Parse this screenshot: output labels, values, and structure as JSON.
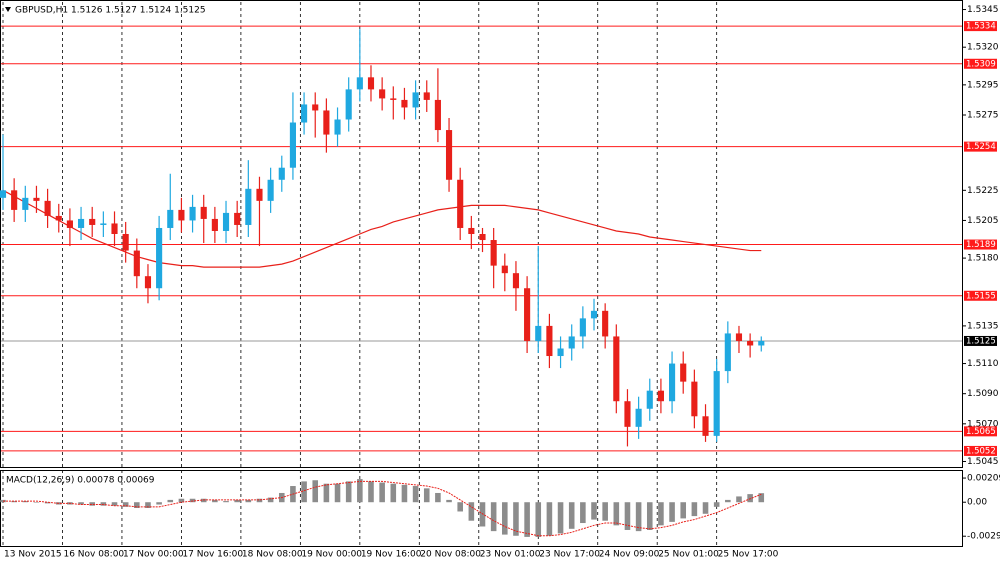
{
  "chart_data": [
    {
      "type": "candlestick",
      "title": "GBPUSD,H1  1.5126 1.5127 1.5124 1.5125",
      "x": [
        0,
        3,
        6,
        9,
        12,
        15,
        18,
        21,
        24,
        27,
        30,
        33,
        36,
        39,
        42,
        45,
        48,
        51,
        54,
        57,
        60,
        63,
        66,
        69,
        72,
        75,
        78,
        81,
        84,
        87,
        90,
        93,
        96,
        99,
        102,
        105,
        108,
        111,
        114,
        117,
        120,
        123,
        126,
        129,
        132,
        135,
        138,
        141,
        144,
        147,
        150,
        153,
        156,
        159,
        162,
        165,
        168,
        171,
        174,
        177,
        180,
        183,
        186,
        189,
        192,
        195,
        198,
        201,
        204
      ],
      "open": [
        1.522,
        1.5225,
        1.5212,
        1.522,
        1.5218,
        1.5208,
        1.5205,
        1.52,
        1.5206,
        1.5202,
        1.5203,
        1.5196,
        1.5185,
        1.5168,
        1.516,
        1.52,
        1.5212,
        1.5205,
        1.5214,
        1.5206,
        1.5198,
        1.521,
        1.5202,
        1.5226,
        1.5218,
        1.5232,
        1.524,
        1.527,
        1.5282,
        1.5278,
        1.5262,
        1.5272,
        1.5292,
        1.53,
        1.5292,
        1.5286,
        1.5285,
        1.528,
        1.529,
        1.5285,
        1.5265,
        1.5232,
        1.52,
        1.5196,
        1.5192,
        1.5175,
        1.517,
        1.516,
        1.5125,
        1.5135,
        1.5115,
        1.512,
        1.5128,
        1.514,
        1.5145,
        1.5128,
        1.5085,
        1.5068,
        1.508,
        1.5092,
        1.5085,
        1.511,
        1.5098,
        1.5075,
        1.5062,
        1.5105,
        1.513,
        1.5125,
        1.5122
      ],
      "high": [
        1.5262,
        1.5233,
        1.5228,
        1.5228,
        1.5226,
        1.5216,
        1.5213,
        1.5214,
        1.5214,
        1.5211,
        1.5211,
        1.5204,
        1.5193,
        1.5176,
        1.5208,
        1.5236,
        1.522,
        1.5222,
        1.5222,
        1.5214,
        1.5218,
        1.5218,
        1.5245,
        1.5234,
        1.524,
        1.5248,
        1.529,
        1.529,
        1.529,
        1.5286,
        1.528,
        1.53,
        1.5332,
        1.5308,
        1.53,
        1.5294,
        1.5293,
        1.5298,
        1.5298,
        1.5306,
        1.5273,
        1.524,
        1.5208,
        1.52,
        1.52,
        1.5183,
        1.5178,
        1.5168,
        1.5188,
        1.5143,
        1.5128,
        1.5136,
        1.5148,
        1.5153,
        1.515,
        1.5136,
        1.5093,
        1.5088,
        1.51,
        1.51,
        1.5118,
        1.5118,
        1.5106,
        1.5083,
        1.5113,
        1.5138,
        1.5135,
        1.513,
        1.5128
      ],
      "low": [
        1.5212,
        1.5204,
        1.5204,
        1.521,
        1.52,
        1.5197,
        1.5188,
        1.5192,
        1.5194,
        1.5194,
        1.5188,
        1.5177,
        1.516,
        1.515,
        1.5152,
        1.5192,
        1.5197,
        1.5197,
        1.519,
        1.519,
        1.519,
        1.5194,
        1.5194,
        1.5188,
        1.521,
        1.5224,
        1.5232,
        1.5262,
        1.526,
        1.525,
        1.5254,
        1.5264,
        1.5284,
        1.5284,
        1.5278,
        1.5272,
        1.5272,
        1.5272,
        1.5277,
        1.5257,
        1.5224,
        1.5192,
        1.5186,
        1.5184,
        1.516,
        1.5158,
        1.5145,
        1.5117,
        1.5117,
        1.5107,
        1.5107,
        1.5112,
        1.512,
        1.5132,
        1.512,
        1.5077,
        1.5055,
        1.506,
        1.5072,
        1.5077,
        1.5077,
        1.509,
        1.5067,
        1.5058,
        1.5058,
        1.5097,
        1.5117,
        1.5114,
        1.5118
      ],
      "close": [
        1.5225,
        1.5212,
        1.522,
        1.5218,
        1.5208,
        1.5205,
        1.52,
        1.5206,
        1.5202,
        1.5203,
        1.5196,
        1.5185,
        1.5168,
        1.516,
        1.52,
        1.5212,
        1.5205,
        1.5214,
        1.5206,
        1.5198,
        1.521,
        1.5202,
        1.5226,
        1.5218,
        1.5232,
        1.524,
        1.527,
        1.5282,
        1.5278,
        1.5262,
        1.5272,
        1.5292,
        1.53,
        1.5292,
        1.5286,
        1.5285,
        1.528,
        1.529,
        1.5285,
        1.5265,
        1.5232,
        1.52,
        1.5196,
        1.5192,
        1.5175,
        1.517,
        1.516,
        1.5125,
        1.5135,
        1.5115,
        1.512,
        1.5128,
        1.514,
        1.5145,
        1.5128,
        1.5085,
        1.5068,
        1.508,
        1.5092,
        1.5085,
        1.511,
        1.5098,
        1.5075,
        1.5062,
        1.5105,
        1.513,
        1.5125,
        1.5122,
        1.5125
      ],
      "up_color": "#1fa8e0",
      "down_color": "#e8201a",
      "moving_average": {
        "color": "#e8201a",
        "values": [
          1.5225,
          1.5221,
          1.5217,
          1.5213,
          1.5209,
          1.5205,
          1.5201,
          1.5197,
          1.5193,
          1.519,
          1.5187,
          1.5184,
          1.5181,
          1.5179,
          1.5177,
          1.5176,
          1.5175,
          1.5175,
          1.5174,
          1.5174,
          1.5174,
          1.5174,
          1.5174,
          1.5174,
          1.5175,
          1.5176,
          1.5178,
          1.5181,
          1.5184,
          1.5187,
          1.519,
          1.5193,
          1.5196,
          1.5199,
          1.5201,
          1.5204,
          1.5206,
          1.5208,
          1.521,
          1.5212,
          1.5213,
          1.5214,
          1.5215,
          1.5215,
          1.5215,
          1.5215,
          1.5214,
          1.5213,
          1.5212,
          1.521,
          1.5208,
          1.5206,
          1.5204,
          1.5202,
          1.52,
          1.5198,
          1.5197,
          1.5196,
          1.5194,
          1.5193,
          1.5192,
          1.5191,
          1.519,
          1.5189,
          1.5188,
          1.5187,
          1.5186,
          1.5185,
          1.5185
        ]
      },
      "levels": [
        1.5334,
        1.5309,
        1.5254,
        1.5189,
        1.5155,
        1.5065,
        1.5052
      ],
      "level_color": "#ff1a1a",
      "current_price": 1.5125,
      "current_price_color": "#9a9a9a",
      "xlim": [
        0,
        258
      ],
      "xticks": [
        {
          "value": 0,
          "label": "13 Nov 2015"
        },
        {
          "value": 16,
          "label": "16 Nov 08:00"
        },
        {
          "value": 32,
          "label": "17 Nov 00:00"
        },
        {
          "value": 48,
          "label": "17 Nov 16:00"
        },
        {
          "value": 64,
          "label": "18 Nov 08:00"
        },
        {
          "value": 80,
          "label": "19 Nov 00:00"
        },
        {
          "value": 96,
          "label": "19 Nov 16:00"
        },
        {
          "value": 112,
          "label": "20 Nov 08:00"
        },
        {
          "value": 128,
          "label": "23 Nov 01:00"
        },
        {
          "value": 144,
          "label": "23 Nov 17:00"
        },
        {
          "value": 160,
          "label": "24 Nov 09:00"
        },
        {
          "value": 176,
          "label": "25 Nov 01:00"
        },
        {
          "value": 192,
          "label": "25 Nov 17:00"
        }
      ],
      "ylim": [
        1.5042,
        1.535
      ],
      "yticks": [
        1.5345,
        {
          "value": 1.532,
          "label": "1.5320"
        },
        1.5295,
        1.5275,
        1.5225,
        1.5205,
        {
          "value": 1.518,
          "label": "1.5180"
        },
        1.5135,
        {
          "value": 1.511,
          "label": "1.5110"
        },
        {
          "value": 1.509,
          "label": "1.5090"
        },
        {
          "value": 1.507,
          "label": "1.5070"
        },
        1.5045
      ]
    },
    {
      "type": "macd",
      "title": "MACD(12,26,9) 0.00078 0.00069",
      "histogram": {
        "color": "#8c8c8c",
        "values": [
          0.0002,
          0.0001,
          0.0001,
          0.0,
          -0.0001,
          -0.0002,
          -0.0002,
          -0.0002,
          -0.0003,
          -0.0003,
          -0.0003,
          -0.0004,
          -0.0005,
          -0.0005,
          -0.0002,
          0.0002,
          0.0003,
          0.0003,
          0.0003,
          0.0002,
          0.0001,
          0.0002,
          0.0002,
          0.0003,
          0.0004,
          0.0008,
          0.0014,
          0.0018,
          0.0019,
          0.0016,
          0.0016,
          0.0018,
          0.002,
          0.0018,
          0.0017,
          0.0016,
          0.0015,
          0.0014,
          0.0012,
          0.0008,
          0.0002,
          -0.0008,
          -0.0016,
          -0.0021,
          -0.0025,
          -0.0028,
          -0.0029,
          -0.003,
          -0.003,
          -0.0029,
          -0.0027,
          -0.0023,
          -0.0018,
          -0.0015,
          -0.0016,
          -0.002,
          -0.0024,
          -0.0025,
          -0.0024,
          -0.002,
          -0.0017,
          -0.0014,
          -0.0012,
          -0.001,
          -0.0004,
          0.0002,
          0.0005,
          0.0007,
          0.00078
        ]
      },
      "signal": {
        "color": "#e8201a",
        "values": [
          0.0001,
          0.0001,
          0.0001,
          0.0001,
          0.0,
          -0.0001,
          -0.0001,
          -0.0002,
          -0.0002,
          -0.0002,
          -0.0003,
          -0.0003,
          -0.0004,
          -0.0004,
          -0.0004,
          -0.0002,
          0.0,
          0.0001,
          0.0002,
          0.0002,
          0.0002,
          0.0002,
          0.0002,
          0.0002,
          0.0003,
          0.0004,
          0.0007,
          0.001,
          0.0013,
          0.0015,
          0.0016,
          0.0017,
          0.0018,
          0.0018,
          0.0018,
          0.0017,
          0.0016,
          0.0015,
          0.0014,
          0.0012,
          0.0008,
          0.0002,
          -0.0004,
          -0.001,
          -0.0016,
          -0.0021,
          -0.0025,
          -0.0027,
          -0.0029,
          -0.0029,
          -0.0028,
          -0.0026,
          -0.0023,
          -0.002,
          -0.0018,
          -0.0018,
          -0.002,
          -0.0022,
          -0.0023,
          -0.0022,
          -0.002,
          -0.0017,
          -0.0015,
          -0.0012,
          -0.0009,
          -0.0005,
          -0.0001,
          0.0003,
          0.00069
        ]
      },
      "ylim": [
        -0.0037,
        0.0027
      ],
      "yticks": [
        0.00209,
        {
          "value": 0,
          "label": "0.00"
        },
        -0.00294
      ]
    }
  ]
}
